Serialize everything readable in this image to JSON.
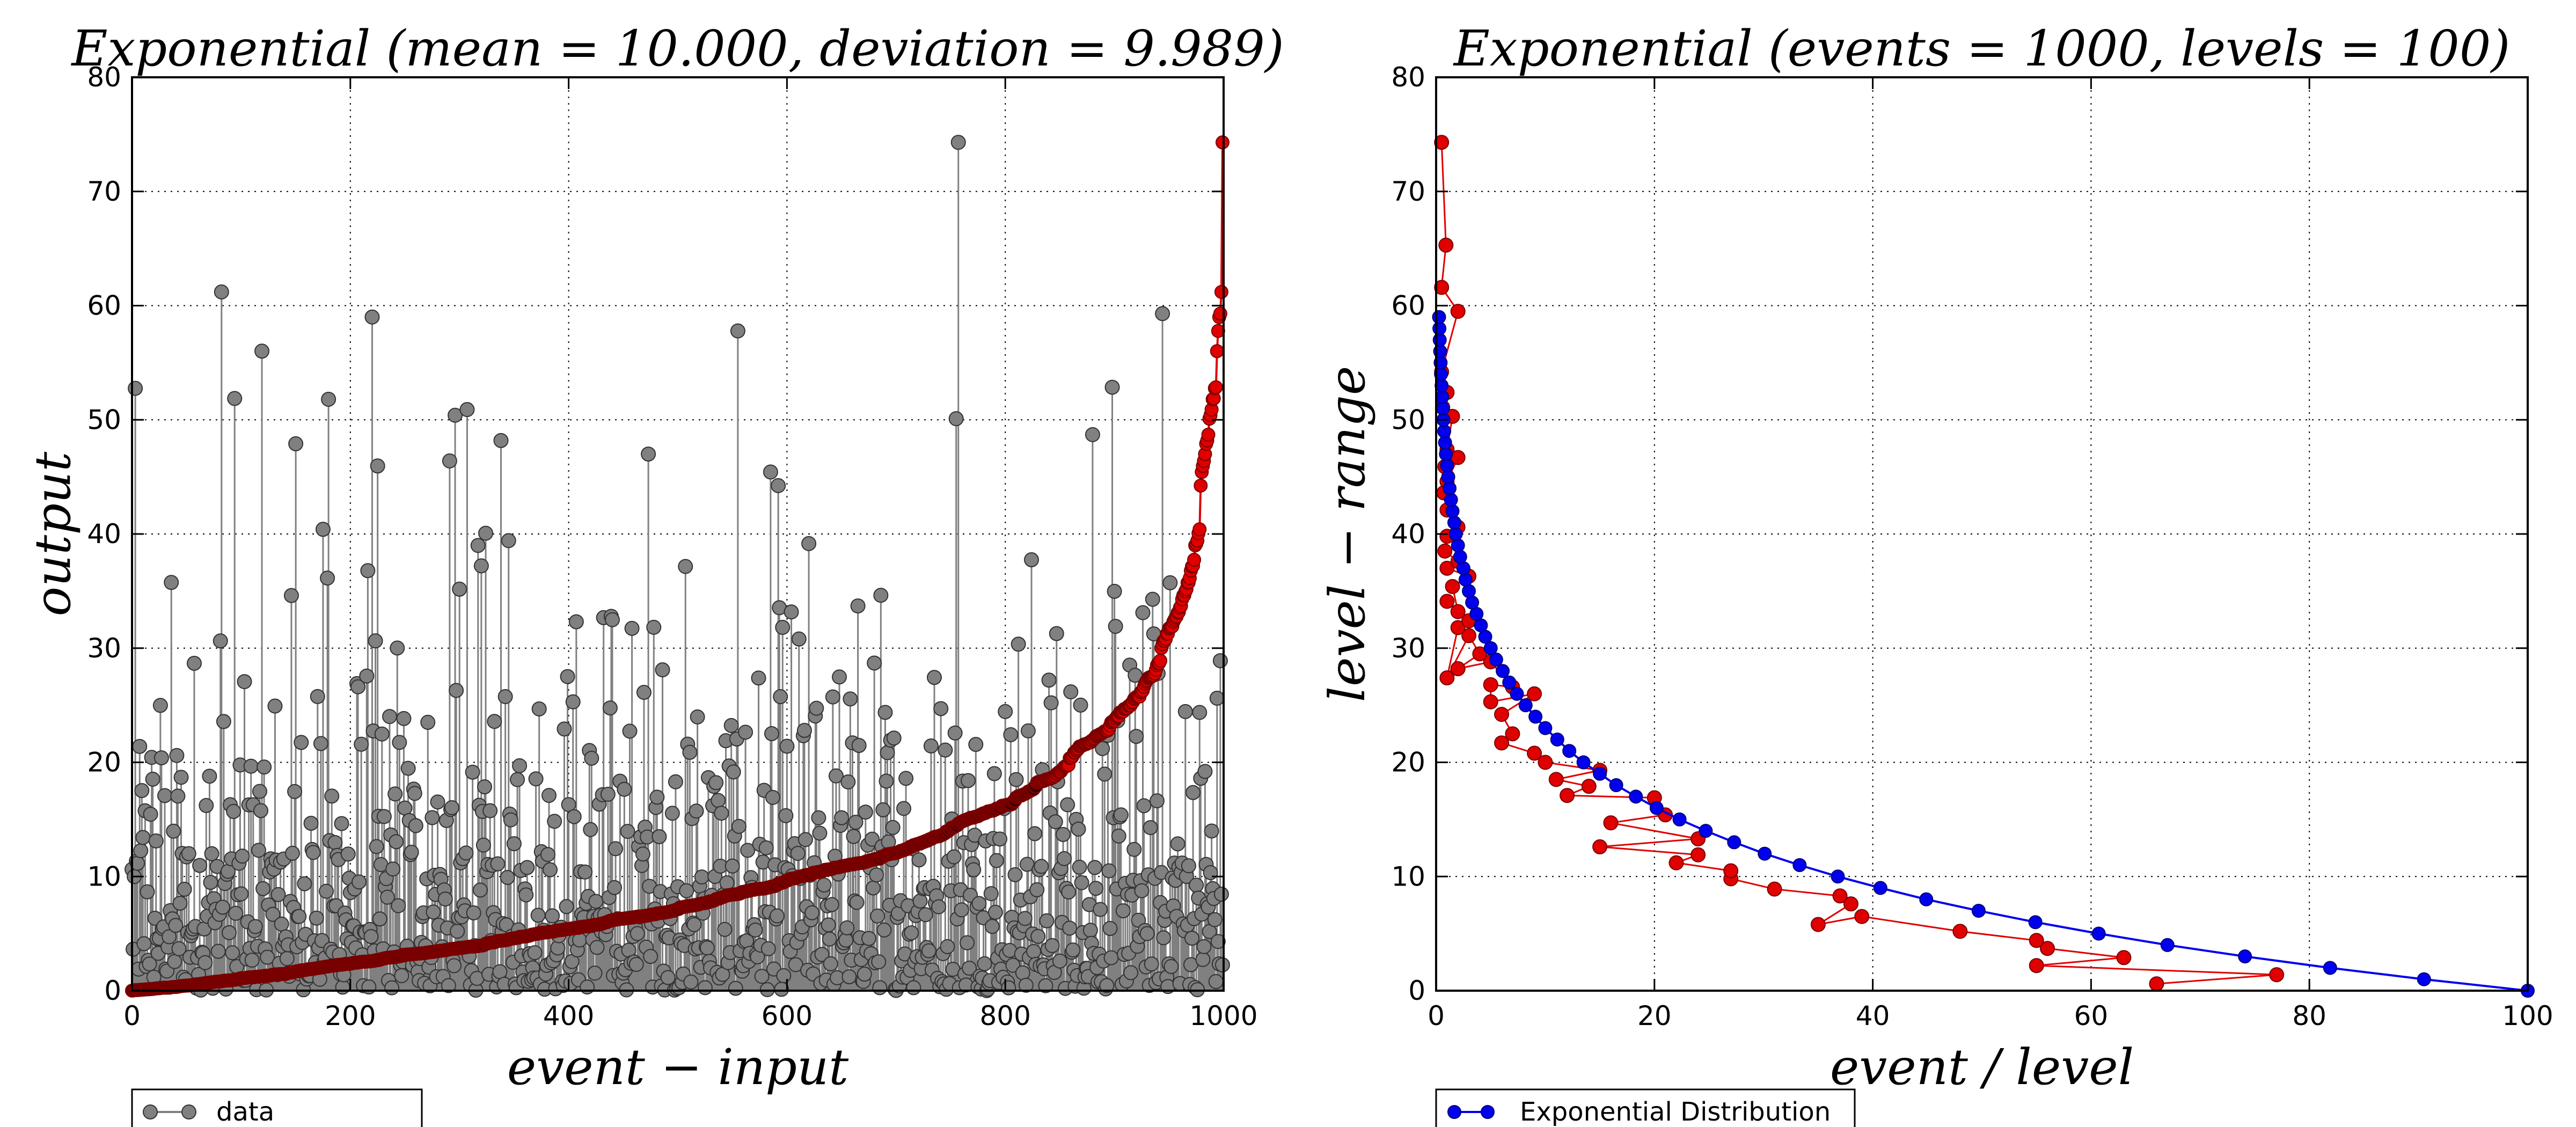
{
  "chart_data": [
    {
      "type": "scatter",
      "title": "Exponential (mean = 10.000, deviation = 9.989)",
      "xlabel": "event − input",
      "ylabel": "output",
      "xlim": [
        0,
        1000
      ],
      "ylim": [
        0,
        80
      ],
      "xticks": [
        "0",
        "200",
        "400",
        "600",
        "800",
        "1000"
      ],
      "yticks": [
        "0",
        "10",
        "20",
        "30",
        "40",
        "50",
        "60",
        "70",
        "80"
      ],
      "grid": true,
      "legend_position": "below-left",
      "n_events": 1000,
      "mean": 10.0,
      "series": [
        {
          "name": "data",
          "style": "stem-markers",
          "color": "#808080",
          "edge": "#333333"
        },
        {
          "style": "sorted-line-markers",
          "color": "#e00000",
          "edge": "#7a0000"
        }
      ],
      "highlighted_peaks": [
        {
          "x": 82,
          "y": 61.2
        },
        {
          "x": 220,
          "y": 59.0
        },
        {
          "x": 757,
          "y": 74.3
        },
        {
          "x": 944,
          "y": 59.3
        },
        {
          "x": 150,
          "y": 47.9
        },
        {
          "x": 180,
          "y": 51.8
        },
        {
          "x": 296,
          "y": 50.4
        },
        {
          "x": 307,
          "y": 50.9
        },
        {
          "x": 473,
          "y": 47.0
        },
        {
          "x": 755,
          "y": 50.1
        },
        {
          "x": 880,
          "y": 48.7
        }
      ]
    },
    {
      "type": "line",
      "title": "Exponential (events = 1000, levels = 100)",
      "xlabel": "event / level",
      "ylabel": "level − range",
      "xlim": [
        0,
        100
      ],
      "ylim": [
        0,
        80
      ],
      "xticks": [
        "0",
        "20",
        "40",
        "60",
        "80",
        "100"
      ],
      "yticks": [
        "0",
        "10",
        "20",
        "30",
        "40",
        "50",
        "60",
        "70",
        "80"
      ],
      "grid": true,
      "legend_position": "below-left",
      "series": [
        {
          "name": "Exponential Distribution",
          "color": "#0000ee",
          "x": [
            100,
            90.5,
            81.9,
            74.1,
            67.0,
            60.7,
            54.9,
            49.7,
            44.9,
            40.7,
            36.8,
            33.3,
            30.1,
            27.3,
            24.7,
            22.3,
            20.2,
            18.3,
            16.5,
            15.0,
            13.5,
            12.2,
            11.1,
            10.0,
            9.1,
            8.2,
            7.4,
            6.7,
            6.1,
            5.5,
            5.0,
            4.5,
            4.1,
            3.7,
            3.3,
            3.0,
            2.7,
            2.5,
            2.2,
            2.0,
            1.8,
            1.67,
            1.5,
            1.36,
            1.23,
            1.11,
            1.0,
            0.9,
            0.82,
            0.74,
            0.67,
            0.61,
            0.55,
            0.5,
            0.45,
            0.41,
            0.37,
            0.33,
            0.3,
            0.27
          ],
          "y": [
            0,
            1,
            2,
            3,
            4,
            5,
            6,
            7,
            8,
            9,
            10,
            11,
            12,
            13,
            14,
            15,
            16,
            17,
            18,
            19,
            20,
            21,
            22,
            23,
            24,
            25,
            26,
            27,
            28,
            29,
            30,
            31,
            32,
            33,
            34,
            35,
            36,
            37,
            38,
            39,
            40,
            41,
            42,
            43,
            44,
            45,
            46,
            47,
            48,
            49,
            50,
            51,
            52,
            53,
            54,
            55,
            56,
            57,
            58,
            59
          ]
        },
        {
          "color": "#e00000",
          "x": [
            66,
            77,
            55,
            63,
            56,
            55,
            48,
            39,
            35,
            38,
            37,
            31,
            27,
            27,
            22,
            24,
            15,
            24,
            16,
            21,
            20,
            12,
            14,
            11,
            15,
            10,
            9,
            6,
            7,
            6,
            9,
            5,
            5,
            7,
            5,
            2,
            4,
            3,
            1,
            2,
            3,
            1,
            2,
            1.5,
            3,
            1,
            2,
            0.8,
            1,
            2,
            1,
            0.7,
            1,
            2,
            0.8,
            1,
            1.5,
            0.6,
            1,
            0.5,
            2,
            0.5,
            0.9,
            0.5
          ],
          "y": [
            0.6,
            1.4,
            2.2,
            2.9,
            3.7,
            4.4,
            5.2,
            6.5,
            5.8,
            7.6,
            8.3,
            8.9,
            9.8,
            10.5,
            11.2,
            11.9,
            12.6,
            13.3,
            14.7,
            15.4,
            16.9,
            17.1,
            17.9,
            18.5,
            19.3,
            20.0,
            20.8,
            21.7,
            22.5,
            24.2,
            26.0,
            25.3,
            26.8,
            26.6,
            28.8,
            28.2,
            29.5,
            31.1,
            27.4,
            31.8,
            32.4,
            34.1,
            33.2,
            35.4,
            36.3,
            37.0,
            37.6,
            38.5,
            39.8,
            40.6,
            42.1,
            43.6,
            44.6,
            46.7,
            45.9,
            47.4,
            50.3,
            51.1,
            52.4,
            54.2,
            59.5,
            61.6,
            65.3,
            74.3
          ]
        }
      ]
    }
  ]
}
